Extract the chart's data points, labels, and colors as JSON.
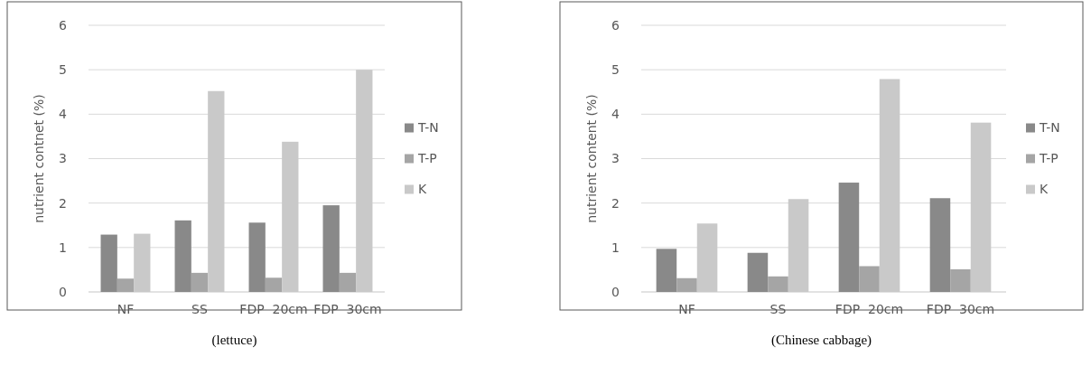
{
  "chart_data": [
    {
      "type": "bar",
      "ylabel": "nutrient contnet (%)",
      "categories": [
        "NF",
        "SS",
        "FDP  20cm",
        "FDP  30cm"
      ],
      "series": [
        {
          "name": "T-N",
          "color": "#898989",
          "values": [
            1.29,
            1.61,
            1.56,
            1.95
          ]
        },
        {
          "name": "T-P",
          "color": "#a5a5a5",
          "values": [
            0.3,
            0.43,
            0.32,
            0.43
          ]
        },
        {
          "name": "K",
          "color": "#c9c9c9",
          "values": [
            1.31,
            4.52,
            3.38,
            5.0
          ]
        }
      ],
      "ylim": [
        0,
        6
      ],
      "yticks": [
        0,
        1,
        2,
        3,
        4,
        5,
        6
      ],
      "grid": "y",
      "legend": "right",
      "annotations": [
        "(lettuce)"
      ]
    },
    {
      "type": "bar",
      "ylabel": "nutrient content (%)",
      "categories": [
        "NF",
        "SS",
        "FDP  20cm",
        "FDP  30cm"
      ],
      "series": [
        {
          "name": "T-N",
          "color": "#898989",
          "values": [
            0.97,
            0.88,
            2.46,
            2.11
          ]
        },
        {
          "name": "T-P",
          "color": "#a5a5a5",
          "values": [
            0.31,
            0.35,
            0.58,
            0.51
          ]
        },
        {
          "name": "K",
          "color": "#c9c9c9",
          "values": [
            1.54,
            2.09,
            4.79,
            3.81
          ]
        }
      ],
      "ylim": [
        0,
        6
      ],
      "yticks": [
        0,
        1,
        2,
        3,
        4,
        5,
        6
      ],
      "grid": "y",
      "legend": "right",
      "annotations": [
        "(Chinese cabbage)"
      ]
    }
  ]
}
